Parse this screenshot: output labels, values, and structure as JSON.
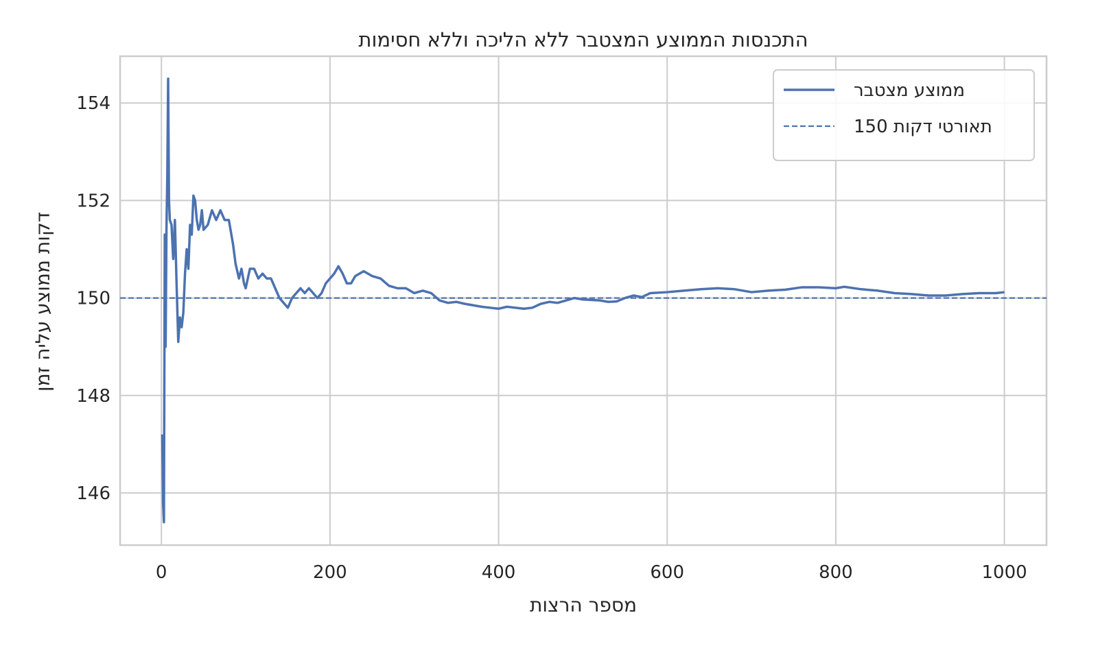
{
  "chart_data": {
    "type": "line",
    "title": "תומיסח אללו הכילה אלל רבטצמה עצוממה תוסנכתה",
    "x_label": "תוצרה רפסמ",
    "y_label": "ןמז הילע עצוממ תוקד",
    "x": [
      1,
      2,
      3,
      4,
      5,
      6,
      7,
      8,
      9,
      10,
      12,
      14,
      16,
      18,
      20,
      22,
      24,
      26,
      28,
      30,
      32,
      34,
      36,
      38,
      40,
      42,
      44,
      46,
      48,
      50,
      55,
      60,
      65,
      70,
      75,
      80,
      85,
      88,
      92,
      95,
      98,
      100,
      105,
      110,
      115,
      120,
      125,
      130,
      135,
      140,
      145,
      150,
      155,
      160,
      165,
      170,
      175,
      180,
      185,
      190,
      195,
      200,
      205,
      210,
      215,
      220,
      225,
      230,
      240,
      250,
      260,
      270,
      280,
      290,
      300,
      310,
      320,
      330,
      340,
      350,
      360,
      370,
      380,
      390,
      400,
      410,
      420,
      430,
      440,
      450,
      460,
      470,
      480,
      490,
      500,
      520,
      530,
      540,
      550,
      560,
      570,
      580,
      600,
      620,
      640,
      660,
      680,
      700,
      720,
      740,
      760,
      780,
      800,
      810,
      830,
      850,
      870,
      890,
      910,
      930,
      950,
      970,
      990,
      1000
    ],
    "series": [
      {
        "name": "רבטצמ עצוממ",
        "color": "#4c72b0",
        "values": [
          147.2,
          145.8,
          145.4,
          151.3,
          149.0,
          151.4,
          152.5,
          154.5,
          152.0,
          151.6,
          151.5,
          150.8,
          151.6,
          150.3,
          149.1,
          149.6,
          149.4,
          149.7,
          150.5,
          151.0,
          150.6,
          151.5,
          151.3,
          152.1,
          152.0,
          151.6,
          151.4,
          151.5,
          151.8,
          151.4,
          151.5,
          151.8,
          151.6,
          151.8,
          151.6,
          151.6,
          151.1,
          150.7,
          150.4,
          150.6,
          150.3,
          150.2,
          150.6,
          150.6,
          150.4,
          150.5,
          150.4,
          150.4,
          150.2,
          150.0,
          149.9,
          149.8,
          150.0,
          150.1,
          150.2,
          150.1,
          150.2,
          150.1,
          150.0,
          150.1,
          150.3,
          150.4,
          150.5,
          150.65,
          150.5,
          150.3,
          150.3,
          150.45,
          150.55,
          150.45,
          150.4,
          150.25,
          150.2,
          150.2,
          150.1,
          150.15,
          150.1,
          149.95,
          149.9,
          149.92,
          149.88,
          149.85,
          149.82,
          149.8,
          149.78,
          149.82,
          149.8,
          149.78,
          149.8,
          149.88,
          149.92,
          149.9,
          149.95,
          150.0,
          149.97,
          149.95,
          149.92,
          149.93,
          150.0,
          150.05,
          150.02,
          150.1,
          150.12,
          150.15,
          150.18,
          150.2,
          150.18,
          150.12,
          150.15,
          150.17,
          150.22,
          150.22,
          150.2,
          150.23,
          150.18,
          150.15,
          150.1,
          150.08,
          150.05,
          150.05,
          150.08,
          150.1,
          150.1,
          150.12
        ]
      }
    ],
    "reference_line": {
      "name": "150 תוקד יטרואת",
      "value": 150,
      "color": "#4c72b0",
      "style": "dashed"
    },
    "xlim": [
      -49,
      1050
    ],
    "ylim": [
      144.93,
      154.96
    ],
    "xticks": [
      0,
      200,
      400,
      600,
      800,
      1000
    ],
    "yticks": [
      146,
      148,
      150,
      152,
      154
    ],
    "grid": true,
    "legend": "upper right"
  }
}
